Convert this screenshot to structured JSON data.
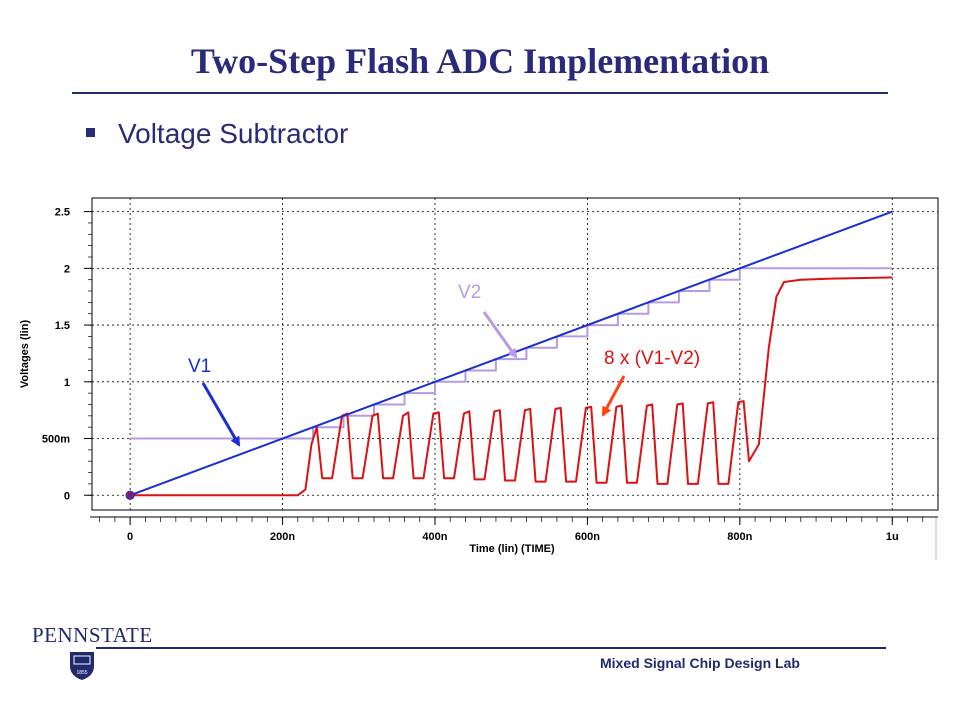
{
  "slide": {
    "title": "Two-Step Flash ADC Implementation",
    "bullet": "Voltage Subtractor",
    "logo_text": "PENNSTATE",
    "logo_year": "1855",
    "footer": "Mixed Signal Chip Design Lab"
  },
  "chart_data": {
    "type": "line",
    "xlabel": "Time (lin) (TIME)",
    "ylabel": "Voltages (lin)",
    "x_ticks": [
      {
        "value": 0,
        "label": "0"
      },
      {
        "value": 200,
        "label": "200n"
      },
      {
        "value": 400,
        "label": "400n"
      },
      {
        "value": 600,
        "label": "600n"
      },
      {
        "value": 800,
        "label": "800n"
      },
      {
        "value": 1000,
        "label": "1u"
      }
    ],
    "y_ticks": [
      {
        "value": 0,
        "label": "0"
      },
      {
        "value": 0.5,
        "label": "500m"
      },
      {
        "value": 1,
        "label": "1"
      },
      {
        "value": 1.5,
        "label": "1.5"
      },
      {
        "value": 2,
        "label": "2"
      },
      {
        "value": 2.5,
        "label": "2.5"
      }
    ],
    "xlim": [
      -50,
      1060
    ],
    "ylim": [
      -0.13,
      2.62
    ],
    "grid": true,
    "series": [
      {
        "name": "V1",
        "color": "#1a2fd0",
        "x": [
          0,
          1000
        ],
        "y": [
          0,
          2.5
        ]
      },
      {
        "name": "V2",
        "color": "#b79ae6",
        "step": true,
        "x": [
          0,
          200,
          240,
          280,
          320,
          360,
          400,
          440,
          480,
          520,
          560,
          600,
          640,
          680,
          720,
          760,
          800,
          1000
        ],
        "y": [
          0.5,
          0.5,
          0.6,
          0.7,
          0.8,
          0.9,
          1.0,
          1.1,
          1.2,
          1.3,
          1.4,
          1.5,
          1.6,
          1.7,
          1.8,
          1.9,
          2.0,
          2.0
        ]
      },
      {
        "name": "8 x (V1-V2)",
        "color": "#dd1111",
        "x": [
          0,
          220,
          230,
          238,
          245,
          252,
          265,
          278,
          285,
          292,
          305,
          318,
          325,
          332,
          345,
          358,
          365,
          372,
          385,
          398,
          405,
          412,
          425,
          438,
          445,
          452,
          465,
          478,
          485,
          492,
          505,
          518,
          525,
          532,
          545,
          558,
          565,
          572,
          585,
          598,
          605,
          612,
          625,
          638,
          645,
          652,
          665,
          678,
          685,
          692,
          705,
          718,
          725,
          732,
          745,
          758,
          765,
          772,
          785,
          798,
          805,
          812,
          825,
          838,
          848,
          858,
          880,
          920,
          1000
        ],
        "y": [
          0.0,
          0.0,
          0.05,
          0.45,
          0.6,
          0.15,
          0.15,
          0.7,
          0.72,
          0.15,
          0.15,
          0.7,
          0.72,
          0.15,
          0.15,
          0.7,
          0.73,
          0.15,
          0.15,
          0.72,
          0.73,
          0.15,
          0.15,
          0.72,
          0.74,
          0.14,
          0.14,
          0.74,
          0.75,
          0.13,
          0.13,
          0.75,
          0.76,
          0.12,
          0.12,
          0.76,
          0.77,
          0.12,
          0.12,
          0.77,
          0.78,
          0.11,
          0.11,
          0.78,
          0.79,
          0.11,
          0.11,
          0.79,
          0.8,
          0.1,
          0.1,
          0.8,
          0.81,
          0.1,
          0.1,
          0.81,
          0.82,
          0.1,
          0.1,
          0.82,
          0.83,
          0.3,
          0.45,
          1.3,
          1.75,
          1.88,
          1.9,
          1.91,
          1.92
        ]
      }
    ],
    "annotations": [
      {
        "text": "V1",
        "color": "#1a2fd0",
        "series": "V1"
      },
      {
        "text": "V2",
        "color": "#b79ae6",
        "series": "V2"
      },
      {
        "text": "8 x (V1-V2)",
        "color": "#dd1111",
        "series": "8 x (V1-V2)"
      }
    ]
  }
}
